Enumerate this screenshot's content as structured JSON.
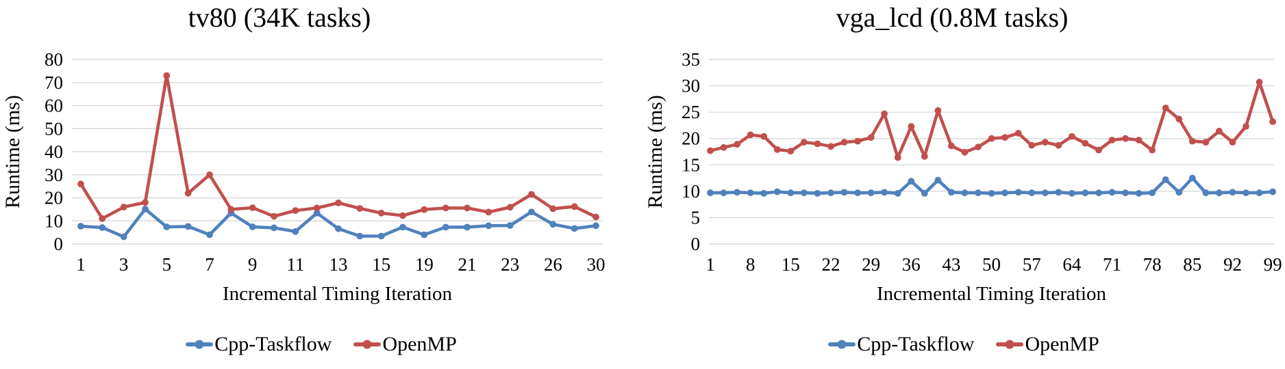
{
  "colors": {
    "taskflow_blue": "#4F81BD",
    "openmp_red": "#C0504D",
    "gridline": "#D9D9D9",
    "text": "#000000",
    "background": "#FFFFFF"
  },
  "chart_data": [
    {
      "type": "line",
      "title": "tv80 (34K tasks)",
      "xlabel": "Incremental Timing Iteration",
      "ylabel": "Runtime (ms)",
      "ylim": [
        0,
        80
      ],
      "ytick_step": 10,
      "grid": true,
      "legend_position": "bottom",
      "n_points": 25,
      "x_tick_every": 2,
      "x_tick_labels": [
        "1",
        "3",
        "5",
        "7",
        "9",
        "11",
        "13",
        "15",
        "19",
        "21",
        "23",
        "26",
        "30"
      ],
      "series": [
        {
          "name": "Cpp-Taskflow",
          "color": "#4F81BD",
          "values": [
            7.7,
            7.1,
            3.1,
            15.1,
            7.4,
            7.6,
            4.0,
            13.4,
            7.4,
            7.0,
            5.4,
            13.4,
            6.6,
            3.4,
            3.4,
            7.3,
            4.0,
            7.3,
            7.3,
            7.9,
            8.0,
            13.9,
            8.5,
            6.7,
            7.9
          ]
        },
        {
          "name": "OpenMP",
          "color": "#C0504D",
          "values": [
            26.0,
            11.0,
            16.0,
            18.0,
            73.0,
            22.0,
            30.0,
            15.0,
            15.7,
            12.0,
            14.5,
            15.6,
            17.8,
            15.4,
            13.4,
            12.3,
            14.9,
            15.6,
            15.6,
            13.8,
            15.9,
            21.5,
            15.3,
            16.2,
            11.7
          ]
        }
      ]
    },
    {
      "type": "line",
      "title": "vga_lcd (0.8M tasks)",
      "xlabel": "Incremental Timing Iteration",
      "ylabel": "Runtime (ms)",
      "ylim": [
        0,
        35
      ],
      "ytick_step": 5,
      "grid": true,
      "legend_position": "bottom",
      "n_points": 43,
      "x_tick_every": 3,
      "x_tick_labels": [
        "1",
        "8",
        "15",
        "22",
        "29",
        "36",
        "43",
        "50",
        "57",
        "64",
        "71",
        "78",
        "85",
        "92",
        "99"
      ],
      "series": [
        {
          "name": "Cpp-Taskflow",
          "color": "#4F81BD",
          "values": [
            9.7,
            9.7,
            9.8,
            9.7,
            9.6,
            9.9,
            9.7,
            9.7,
            9.6,
            9.7,
            9.8,
            9.7,
            9.7,
            9.8,
            9.6,
            11.9,
            9.6,
            12.1,
            9.8,
            9.7,
            9.7,
            9.6,
            9.7,
            9.8,
            9.7,
            9.7,
            9.8,
            9.6,
            9.7,
            9.7,
            9.8,
            9.7,
            9.6,
            9.7,
            12.2,
            9.8,
            12.5,
            9.7,
            9.7,
            9.8,
            9.7,
            9.7,
            9.9
          ]
        },
        {
          "name": "OpenMP",
          "color": "#C0504D",
          "values": [
            17.7,
            18.3,
            18.9,
            20.7,
            20.4,
            17.9,
            17.6,
            19.3,
            19.0,
            18.5,
            19.3,
            19.5,
            20.2,
            24.7,
            16.4,
            22.3,
            16.6,
            25.3,
            18.6,
            17.4,
            18.4,
            20.0,
            20.2,
            21.0,
            18.7,
            19.3,
            18.7,
            20.4,
            19.1,
            17.8,
            19.7,
            20.0,
            19.7,
            17.8,
            25.8,
            23.7,
            19.5,
            19.3,
            21.4,
            19.3,
            22.3,
            30.7,
            23.2
          ]
        }
      ]
    }
  ]
}
